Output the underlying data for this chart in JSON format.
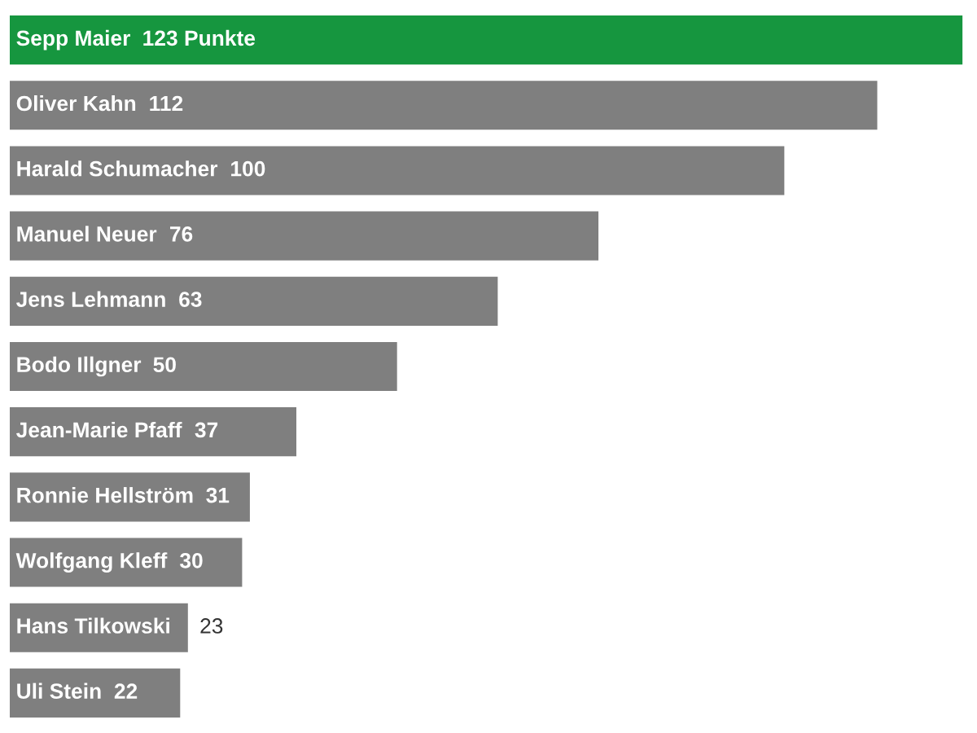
{
  "chart_data": {
    "type": "bar",
    "orientation": "horizontal",
    "categories": [
      "Sepp Maier",
      "Oliver Kahn",
      "Harald Schumacher",
      "Manuel Neuer",
      "Jens Lehmann",
      "Bodo Illgner",
      "Jean-Marie Pfaff",
      "Ronnie Hellström",
      "Wolfgang Kleff",
      "Hans Tilkowski",
      "Uli Stein"
    ],
    "values": [
      123,
      112,
      100,
      76,
      63,
      50,
      37,
      31,
      30,
      23,
      22
    ],
    "colors": [
      "#16963f",
      "#7f7f7f",
      "#7f7f7f",
      "#7f7f7f",
      "#7f7f7f",
      "#7f7f7f",
      "#7f7f7f",
      "#7f7f7f",
      "#7f7f7f",
      "#7f7f7f",
      "#7f7f7f"
    ],
    "value_labels": [
      "123 Punkte",
      "112",
      "100",
      "76",
      "63",
      "50",
      "37",
      "31",
      "30",
      "23",
      "22"
    ]
  }
}
